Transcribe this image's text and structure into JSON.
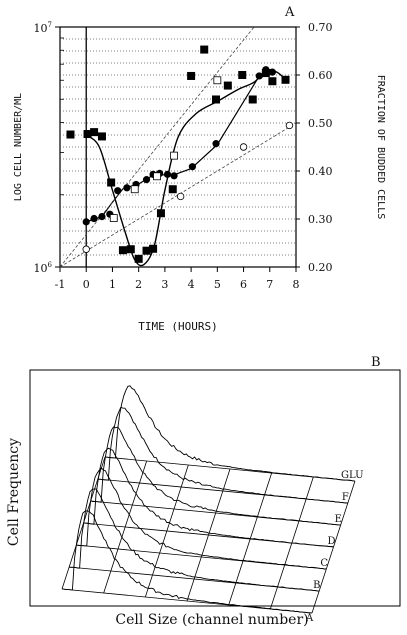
{
  "chart_data": [
    {
      "type": "scatter",
      "panel_label": "A",
      "xlabel": "TIME (HOURS)",
      "ylabel_left": "LOG CELL NUMBER/ML",
      "ylabel_right": "FRACTION OF BUDDED CELLS",
      "xlim": [
        -1,
        8
      ],
      "x_ticks": [
        "-1",
        "0",
        "1",
        "2",
        "3",
        "4",
        "5",
        "6",
        "7",
        "8"
      ],
      "y_left_scale": "log",
      "y_left_ticks": [
        {
          "base": "10",
          "exp": "6"
        },
        {
          "base": "10",
          "exp": "7"
        }
      ],
      "y_right_lim": [
        0.2,
        0.7
      ],
      "y_right_ticks": [
        "0.20",
        "0.30",
        "0.40",
        "0.50",
        "0.60",
        "0.70"
      ],
      "grid": "horizontal dotted",
      "series": [
        {
          "marker": "filled-square",
          "x": [
            -0.6,
            0.05,
            0.3,
            0.6,
            0.95,
            1.4,
            1.7,
            2.0,
            2.3,
            2.55,
            2.85,
            3.3,
            4.0,
            4.5,
            4.95,
            5.4,
            5.95,
            6.35,
            6.85,
            7.1,
            7.6
          ],
          "y": [
            0.476,
            0.477,
            0.481,
            0.472,
            0.376,
            0.235,
            0.237,
            0.217,
            0.234,
            0.238,
            0.312,
            0.362,
            0.598,
            0.653,
            0.549,
            0.578,
            0.6,
            0.549,
            0.604,
            0.587,
            0.59
          ]
        },
        {
          "marker": "filled-circle",
          "x": [
            0.0,
            0.3,
            0.6,
            0.9,
            1.2,
            1.55,
            1.9,
            2.3,
            2.55,
            2.8,
            3.1,
            3.35,
            4.05,
            4.95,
            6.6,
            6.85,
            7.1
          ],
          "y": [
            0.294,
            0.301,
            0.305,
            0.31,
            0.359,
            0.365,
            0.372,
            0.382,
            0.393,
            0.395,
            0.393,
            0.39,
            0.409,
            0.457,
            0.598,
            0.611,
            0.606
          ]
        },
        {
          "marker": "open-square",
          "x": [
            1.05,
            1.85,
            2.7,
            3.35,
            5.0
          ],
          "y": [
            0.302,
            0.362,
            0.389,
            0.432,
            0.589
          ]
        },
        {
          "marker": "open-circle",
          "x": [
            0.0,
            3.6,
            6.0,
            7.75
          ],
          "y": [
            0.237,
            0.347,
            0.45,
            0.495
          ]
        }
      ],
      "lines": [
        {
          "style": "solid-smooth",
          "x": [
            0.0,
            0.5,
            1.0,
            1.5,
            1.85,
            2.2,
            2.6,
            3.0,
            3.5,
            4.2,
            5.0,
            5.8,
            6.4,
            6.9,
            7.3,
            7.6
          ],
          "y": [
            0.475,
            0.45,
            0.36,
            0.27,
            0.215,
            0.205,
            0.245,
            0.36,
            0.47,
            0.52,
            0.545,
            0.57,
            0.585,
            0.61,
            0.605,
            0.59
          ]
        },
        {
          "style": "solid",
          "x": [
            0.0,
            0.6,
            1.0,
            1.4,
            2.0,
            2.6,
            3.3,
            4.0,
            5.0,
            6.6,
            7.1
          ],
          "y": [
            0.294,
            0.305,
            0.335,
            0.363,
            0.373,
            0.393,
            0.391,
            0.405,
            0.455,
            0.598,
            0.606
          ]
        },
        {
          "style": "dashed",
          "x": [
            -1.0,
            6.4
          ],
          "y": [
            0.2,
            0.7
          ]
        },
        {
          "style": "dashed",
          "x": [
            -1.0,
            8.0
          ],
          "y": [
            0.2,
            0.5
          ]
        }
      ]
    },
    {
      "type": "area",
      "panel_label": "B",
      "xlabel": "Cell Size (channel number)",
      "ylabel": "Cell Frequency",
      "series": [
        {
          "name": "A"
        },
        {
          "name": "B"
        },
        {
          "name": "C"
        },
        {
          "name": "D"
        },
        {
          "name": "E"
        },
        {
          "name": "F"
        },
        {
          "name": "GLU"
        }
      ]
    }
  ]
}
